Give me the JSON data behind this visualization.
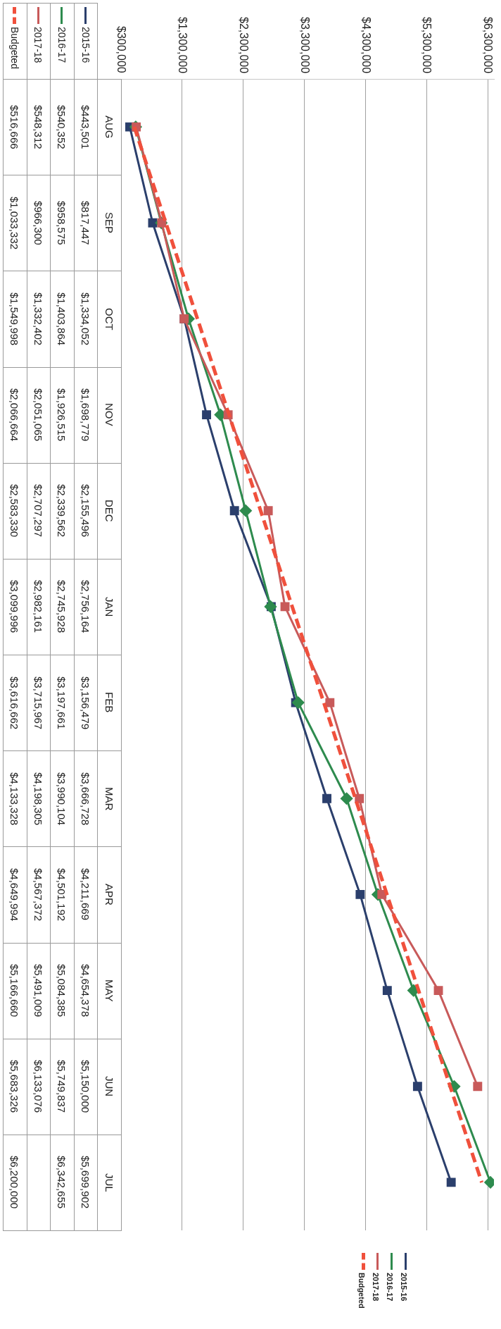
{
  "chart_data": {
    "type": "line",
    "categories": [
      "AUG",
      "SEP",
      "OCT",
      "NOV",
      "DEC",
      "JAN",
      "FEB",
      "MAR",
      "APR",
      "MAY",
      "JUN",
      "JUL"
    ],
    "series": [
      {
        "name": "2015-16",
        "color": "#2b3f6c",
        "marker": "square",
        "line_style": "solid",
        "values": [
          443501,
          817447,
          1334052,
          1698779,
          2155496,
          2756164,
          3156479,
          3666728,
          4211669,
          4654378,
          5150000,
          5699902
        ],
        "value_labels": [
          "$443,501",
          "$817,447",
          "$1,334,052",
          "$1,698,779",
          "$2,155,496",
          "$2,756,164",
          "$3,156,479",
          "$3,666,728",
          "$4,211,669",
          "$4,654,378",
          "$5,150,000",
          "$5,699,902"
        ]
      },
      {
        "name": "2016-17",
        "color": "#2e8b4e",
        "marker": "diamond",
        "line_style": "solid",
        "values": [
          540352,
          958575,
          1403864,
          1926515,
          2339562,
          2745928,
          3197661,
          3990104,
          4501192,
          5084385,
          5749837,
          6342655
        ],
        "value_labels": [
          "$540,352",
          "$958,575",
          "$1,403,864",
          "$1,926,515",
          "$2,339,562",
          "$2,745,928",
          "$3,197,661",
          "$3,990,104",
          "$4,501,192",
          "$5,084,385",
          "$5,749,837",
          "$6,342,655"
        ]
      },
      {
        "name": "2017-18",
        "color": "#c85a5a",
        "marker": "square",
        "line_style": "solid",
        "values": [
          548312,
          966300,
          1332402,
          2051065,
          2707297,
          2982161,
          3715967,
          4198305,
          4567372,
          5491009,
          6133076,
          null
        ],
        "value_labels": [
          "$548,312",
          "$966,300",
          "$1,332,402",
          "$2,051,065",
          "$2,707,297",
          "$2,982,161",
          "$3,715,967",
          "$4,198,305",
          "$4,567,372",
          "$5,491,009",
          "$6,133,076",
          null
        ]
      },
      {
        "name": "Budgeted",
        "color": "#f0503c",
        "marker": "none",
        "line_style": "dashed",
        "values": [
          516666,
          1033332,
          1549998,
          2066664,
          2583330,
          3099996,
          3616662,
          4133328,
          4649994,
          5166660,
          5683326,
          6200000
        ],
        "value_labels": [
          "$516,666",
          "$1,033,332",
          "$1,549,998",
          "$2,066,664",
          "$2,583,330",
          "$3,099,996",
          "$3,616,662",
          "$4,133,328",
          "$4,649,994",
          "$5,166,660",
          "$5,683,326",
          "$6,200,000"
        ]
      }
    ],
    "orientation": "horizontal",
    "xlim": [
      300000,
      6400000
    ],
    "xticks": [
      {
        "value": 300000,
        "label": "$300,000"
      },
      {
        "value": 1300000,
        "label": "$1,300,000"
      },
      {
        "value": 2300000,
        "label": "$2,300,000"
      },
      {
        "value": 3300000,
        "label": "$3,300,000"
      },
      {
        "value": 4300000,
        "label": "$4,300,000"
      },
      {
        "value": 5300000,
        "label": "$5,300,000"
      },
      {
        "value": 6300000,
        "label": "$6,300,000"
      }
    ],
    "grid": "x",
    "legend": "bottom"
  }
}
